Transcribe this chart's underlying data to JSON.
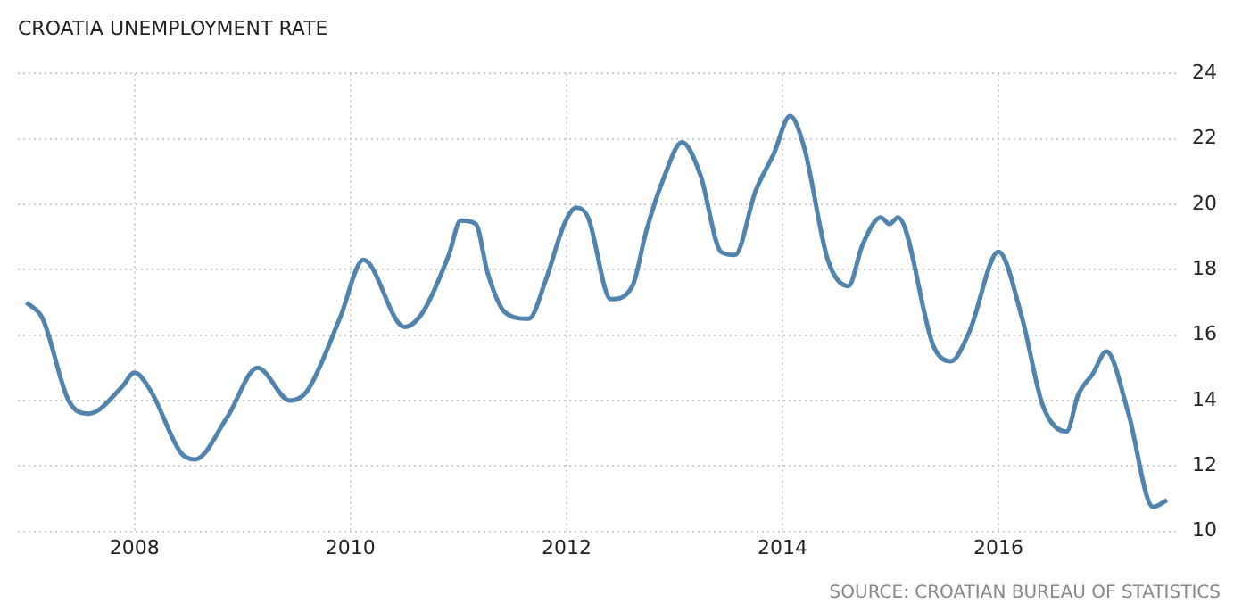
{
  "chart_data": {
    "type": "line",
    "title": "CROATIA UNEMPLOYMENT RATE",
    "annotations": [
      "SOURCE: CROATIAN BUREAU OF STATISTICS"
    ],
    "x": [
      2007.0,
      2007.15,
      2007.39,
      2007.58,
      2007.88,
      2008.0,
      2008.15,
      2008.43,
      2008.56,
      2008.86,
      2009.14,
      2009.44,
      2009.6,
      2009.9,
      2010.12,
      2010.5,
      2010.67,
      2010.91,
      2011.02,
      2011.16,
      2011.27,
      2011.43,
      2011.65,
      2011.81,
      2011.98,
      2012.09,
      2012.2,
      2012.41,
      2012.61,
      2012.74,
      2012.9,
      2013.07,
      2013.24,
      2013.43,
      2013.56,
      2013.75,
      2013.92,
      2014.07,
      2014.2,
      2014.42,
      2014.61,
      2014.74,
      2014.91,
      2014.99,
      2015.07,
      2015.4,
      2015.56,
      2015.73,
      2016.0,
      2016.22,
      2016.41,
      2016.63,
      2016.74,
      2016.87,
      2017.0,
      2017.2,
      2017.43,
      2017.56
    ],
    "series": [
      {
        "color": "#5083ae",
        "values": [
          17.0,
          16.5,
          14.0,
          13.6,
          14.4,
          14.85,
          14.3,
          12.4,
          12.2,
          13.5,
          15.0,
          14.0,
          14.3,
          16.5,
          18.3,
          16.25,
          16.7,
          18.45,
          19.5,
          19.4,
          17.9,
          16.7,
          16.5,
          17.7,
          19.4,
          19.9,
          19.6,
          17.1,
          17.5,
          19.2,
          20.8,
          21.9,
          20.9,
          18.55,
          18.45,
          20.4,
          21.55,
          22.7,
          21.75,
          18.3,
          17.5,
          18.75,
          19.6,
          19.4,
          19.6,
          15.65,
          15.2,
          16.1,
          18.55,
          16.5,
          13.85,
          13.05,
          14.2,
          14.8,
          15.5,
          13.65,
          10.75,
          10.95
        ]
      }
    ],
    "xlim": [
      2006.92,
      2017.66
    ],
    "xticks": [
      2008,
      2010,
      2012,
      2014,
      2016
    ],
    "ylim": [
      10,
      24
    ],
    "yticks": [
      10,
      12,
      14,
      16,
      18,
      20,
      22,
      24
    ],
    "grid": true,
    "legend": false,
    "marker": "none",
    "line_style": "solid"
  }
}
